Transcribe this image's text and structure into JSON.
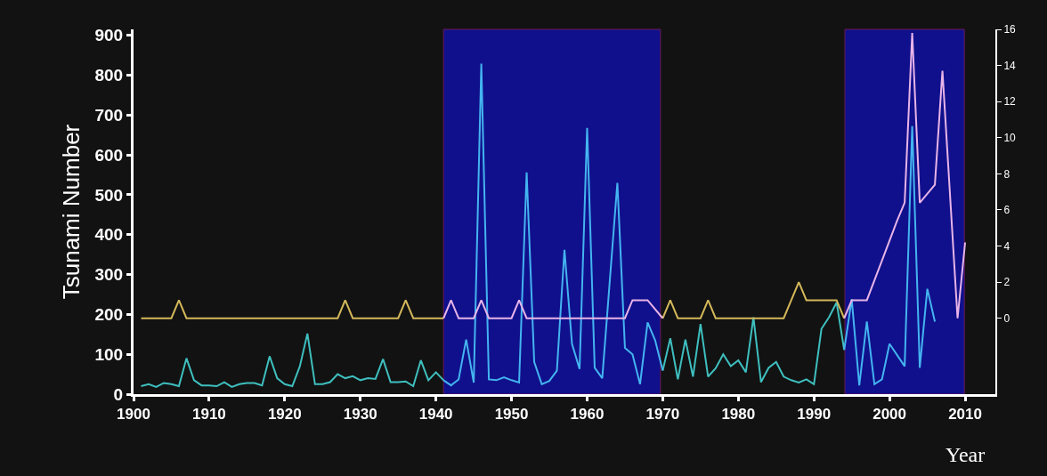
{
  "chart_data": {
    "type": "line",
    "xlabel": "Year",
    "ylabel": "Tsunami Number",
    "xlim": [
      1900,
      2014
    ],
    "xticks": [
      1900,
      1910,
      1920,
      1930,
      1940,
      1950,
      1960,
      1970,
      1980,
      1990,
      2000,
      2010
    ],
    "ylim": [
      0,
      915
    ],
    "yticks": [
      0,
      100,
      200,
      300,
      400,
      500,
      600,
      700,
      800,
      900
    ],
    "y2lim": [
      -4.2,
      16
    ],
    "y2ticks": [
      0,
      2,
      4,
      6,
      8,
      10,
      12,
      14,
      16
    ],
    "grid": false,
    "line_style": "solid",
    "marker": "none",
    "bands": [
      {
        "axis": "x",
        "from": 1941,
        "to": 1969.7,
        "color": "#10108c"
      },
      {
        "axis": "x",
        "from": 1994.1,
        "to": 2009.9,
        "color": "#10108c"
      }
    ],
    "series": [
      {
        "color": "#3fbfbf",
        "axis": "y",
        "x": [
          1901,
          1902,
          1903,
          1904,
          1905,
          1906,
          1907,
          1908,
          1909,
          1910,
          1911,
          1912,
          1913,
          1914,
          1915,
          1916,
          1917,
          1918,
          1919,
          1920,
          1921,
          1922,
          1923,
          1924,
          1925,
          1926,
          1927,
          1928,
          1929,
          1930,
          1931,
          1932,
          1933,
          1934,
          1935,
          1936,
          1937,
          1938,
          1939,
          1940,
          1941,
          1955,
          1970,
          1971,
          1972,
          1973,
          1974,
          1975,
          1976,
          1977,
          1978,
          1979,
          1980,
          1981,
          1982,
          1983,
          1984,
          1985,
          1986,
          1987,
          1988,
          1989,
          1990,
          1991,
          1992,
          1993,
          1994
        ],
        "values": [
          20,
          25,
          18,
          28,
          25,
          20,
          90,
          35,
          22,
          22,
          20,
          30,
          18,
          25,
          28,
          28,
          22,
          95,
          40,
          25,
          20,
          70,
          152,
          25,
          25,
          30,
          50,
          40,
          45,
          35,
          40,
          38,
          88,
          30,
          30,
          32,
          20,
          85,
          35,
          55,
          35,
          null,
          59,
          140,
          37,
          137,
          44,
          176,
          44,
          65,
          100,
          70,
          85,
          55,
          193,
          30,
          66,
          81,
          44,
          35,
          29,
          37,
          25,
          164,
          193,
          230,
          111
        ]
      },
      {
        "color": "#44b4f0",
        "axis": "y",
        "x": [
          1941,
          1942,
          1943,
          1944,
          1945,
          1946,
          1947,
          1948,
          1949,
          1950,
          1951,
          1952,
          1953,
          1954,
          1955,
          1956,
          1957,
          1958,
          1959,
          1960,
          1961,
          1962,
          1964,
          1965,
          1966,
          1967,
          1968,
          1969,
          1970,
          1980,
          1994,
          1995,
          1996,
          1997,
          1998,
          1999,
          2000,
          2002,
          2003,
          2004,
          2005,
          2006
        ],
        "values": [
          35,
          22,
          37,
          137,
          29,
          829,
          37,
          35,
          42,
          35,
          29,
          556,
          81,
          25,
          33,
          59,
          362,
          126,
          63,
          668,
          66,
          40,
          530,
          116,
          100,
          25,
          180,
          135,
          59,
          null,
          111,
          238,
          22,
          182,
          25,
          37,
          126,
          70,
          672,
          66,
          264,
          182
        ]
      },
      {
        "color": "#d4b85a",
        "axis": "y2",
        "x": [
          1901,
          1905,
          1906,
          1907,
          1927,
          1928,
          1929,
          1935,
          1936,
          1937,
          1941,
          1955,
          1970,
          1971,
          1972,
          1975,
          1976,
          1977,
          1986,
          1988,
          1989,
          1993,
          1994
        ],
        "values": [
          0,
          0,
          1,
          0,
          0,
          1,
          0,
          0,
          1,
          0,
          0,
          null,
          0,
          1,
          0,
          0,
          1,
          0,
          0,
          2,
          1,
          1,
          0
        ]
      },
      {
        "color": "#e8b4e8",
        "axis": "y2",
        "x": [
          1941,
          1942,
          1943,
          1945,
          1946,
          1947,
          1950,
          1951,
          1952,
          1965,
          1966,
          1968,
          1970,
          1980,
          1994,
          1995,
          1997,
          1999,
          2001,
          2002,
          2003,
          2004,
          2006,
          2007,
          2009,
          2010
        ],
        "values": [
          0,
          1,
          0,
          0,
          1,
          0,
          0,
          1,
          0,
          0,
          1,
          1,
          0,
          null,
          0,
          1,
          1,
          3.2,
          5.4,
          6.4,
          15.8,
          6.4,
          7.4,
          13.7,
          0,
          4.2
        ]
      }
    ]
  }
}
